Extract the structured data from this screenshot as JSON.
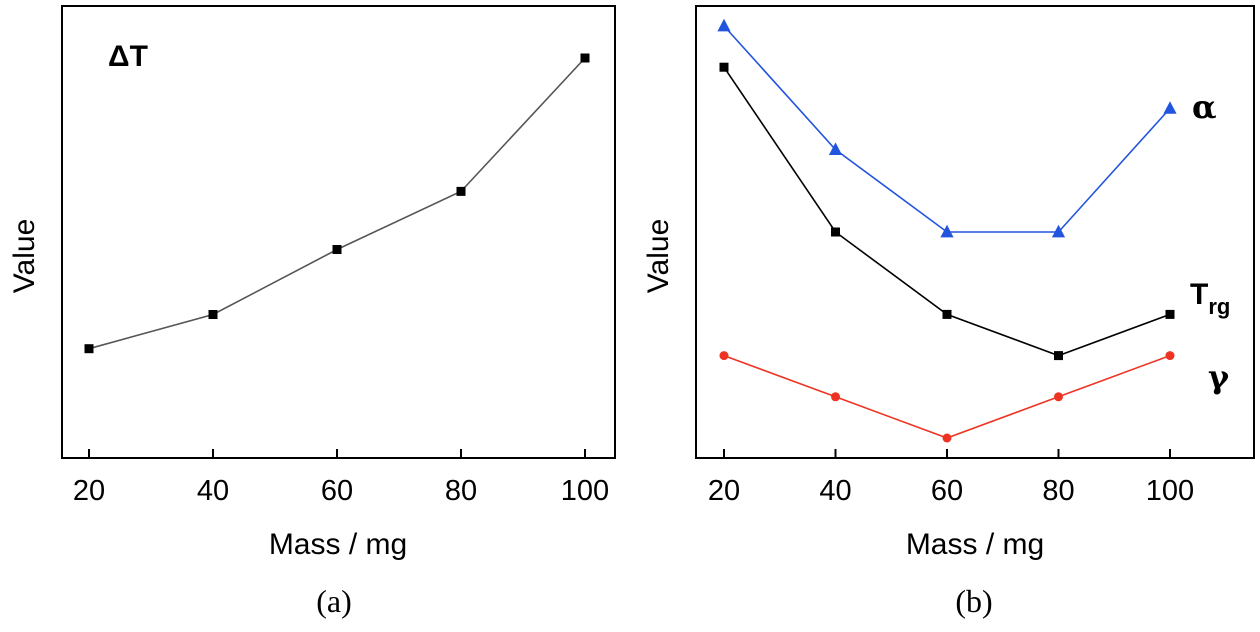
{
  "chart_data": [
    {
      "panel": "(a)",
      "type": "line",
      "xlabel": "Mass / mg",
      "ylabel": "Value",
      "xticks": [
        "20",
        "40",
        "60",
        "80",
        "100"
      ],
      "xlim": [
        20,
        100
      ],
      "ylim": [
        0,
        1
      ],
      "yticks_labeled": false,
      "annotations": [
        {
          "text": "ΔT",
          "series": "ΔT"
        }
      ],
      "series": [
        {
          "name": "ΔT",
          "color": "#555555",
          "marker": "square",
          "x": [
            20,
            40,
            60,
            80,
            100
          ],
          "y": [
            0.15,
            0.25,
            0.44,
            0.61,
            1.0
          ]
        }
      ]
    },
    {
      "panel": "(b)",
      "type": "line",
      "xlabel": "Mass / mg",
      "ylabel": "Value",
      "xticks": [
        "20",
        "40",
        "60",
        "80",
        "100"
      ],
      "xlim": [
        20,
        100
      ],
      "ylim": [
        0,
        1
      ],
      "yticks_labeled": false,
      "series": [
        {
          "name": "α",
          "label_main": "α",
          "color": "#2255dd",
          "marker": "triangle",
          "x": [
            20,
            40,
            60,
            80,
            100
          ],
          "y": [
            1.0,
            0.7,
            0.5,
            0.5,
            0.8
          ]
        },
        {
          "name": "Trg",
          "label_main": "T",
          "label_sub": "rg",
          "color": "#000000",
          "marker": "square",
          "x": [
            20,
            40,
            60,
            80,
            100
          ],
          "y": [
            0.9,
            0.5,
            0.3,
            0.2,
            0.3
          ]
        },
        {
          "name": "γ",
          "label_main": "γ",
          "color": "#ee3322",
          "marker": "circle",
          "x": [
            20,
            40,
            60,
            80,
            100
          ],
          "y": [
            0.2,
            0.1,
            0.0,
            0.1,
            0.2
          ]
        }
      ]
    }
  ]
}
